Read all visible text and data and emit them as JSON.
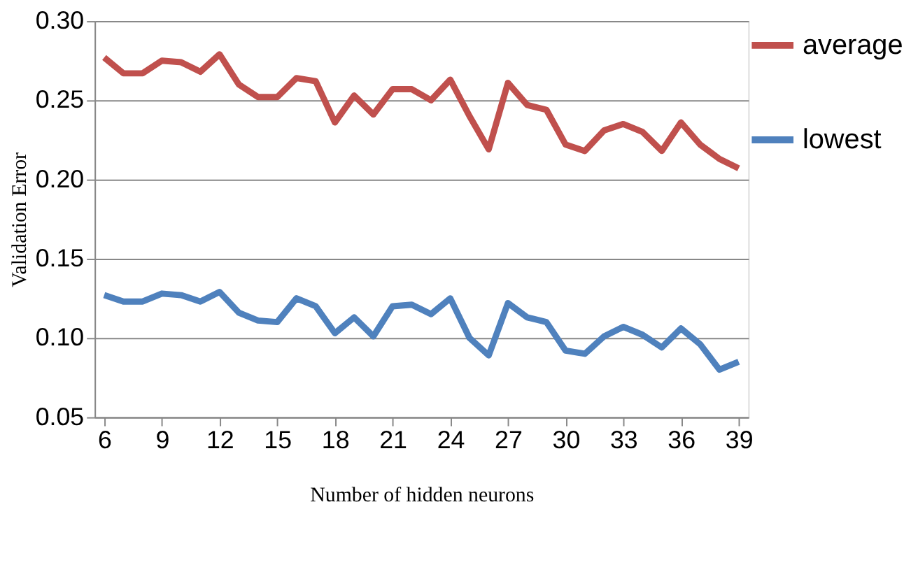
{
  "chart_data": {
    "type": "line",
    "xlabel": "Number of hidden neurons",
    "ylabel": "Validation Error",
    "x": [
      6,
      7,
      8,
      9,
      10,
      11,
      12,
      13,
      14,
      15,
      16,
      17,
      18,
      19,
      20,
      21,
      22,
      23,
      24,
      25,
      26,
      27,
      28,
      29,
      30,
      31,
      32,
      33,
      34,
      35,
      36,
      37,
      38,
      39
    ],
    "series": [
      {
        "name": "average",
        "color": "#c0504d",
        "values": [
          0.277,
          0.267,
          0.267,
          0.275,
          0.274,
          0.268,
          0.279,
          0.26,
          0.252,
          0.252,
          0.264,
          0.262,
          0.236,
          0.253,
          0.241,
          0.257,
          0.257,
          0.25,
          0.263,
          0.24,
          0.219,
          0.261,
          0.247,
          0.244,
          0.222,
          0.218,
          0.231,
          0.235,
          0.23,
          0.218,
          0.236,
          0.222,
          0.213,
          0.207
        ]
      },
      {
        "name": "lowest",
        "color": "#4f81bd",
        "values": [
          0.127,
          0.123,
          0.123,
          0.128,
          0.127,
          0.123,
          0.129,
          0.116,
          0.111,
          0.11,
          0.125,
          0.12,
          0.103,
          0.113,
          0.101,
          0.12,
          0.121,
          0.115,
          0.125,
          0.1,
          0.089,
          0.122,
          0.113,
          0.11,
          0.092,
          0.09,
          0.101,
          0.107,
          0.102,
          0.094,
          0.106,
          0.096,
          0.08,
          0.085
        ]
      }
    ],
    "xlim": [
      5.5,
      39.5
    ],
    "xticks": [
      6,
      9,
      12,
      15,
      18,
      21,
      24,
      27,
      30,
      33,
      36,
      39
    ],
    "ylim": [
      0.05,
      0.3
    ],
    "yticks": [
      0.05,
      {
        "value": 0.1,
        "label": "0.10"
      },
      0.15,
      {
        "value": 0.2,
        "label": "0.20"
      },
      0.25,
      {
        "value": 0.3,
        "label": "0.30"
      }
    ],
    "grid": "y",
    "legend": "right",
    "marker": "none",
    "line_style": "solid"
  }
}
